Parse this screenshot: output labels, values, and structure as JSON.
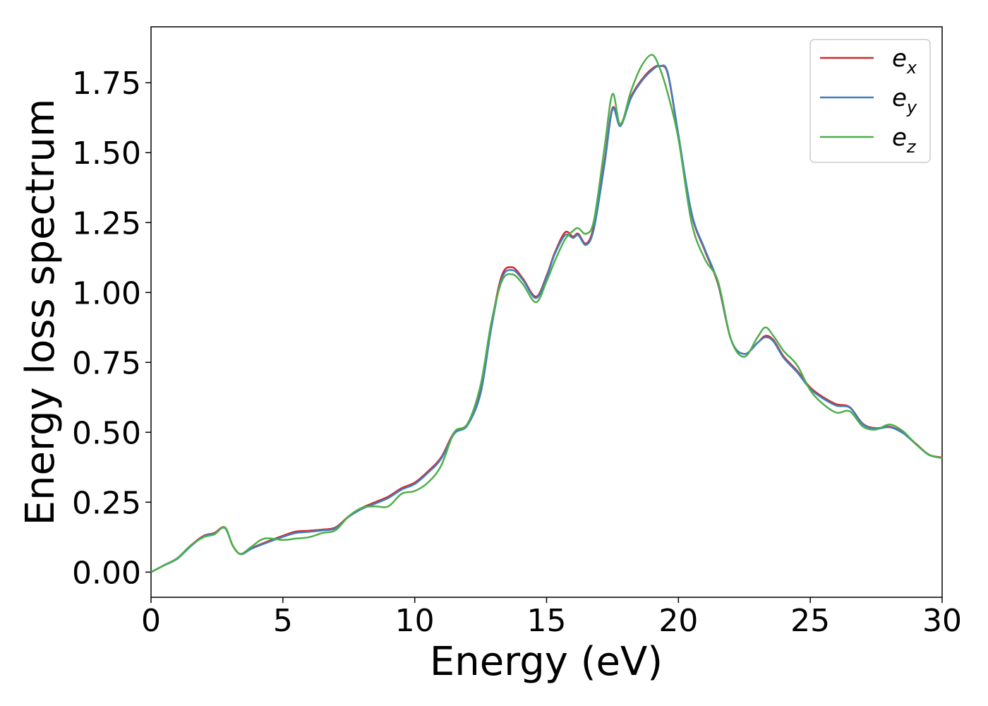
{
  "chart_data": {
    "type": "line",
    "title": "",
    "xlabel": "Energy (eV)",
    "ylabel": "Energy loss spectrum",
    "xlim": [
      0,
      30
    ],
    "ylim": [
      -0.09,
      1.95
    ],
    "xticks": [
      "0",
      "5",
      "10",
      "15",
      "20",
      "25",
      "30"
    ],
    "yticks": [
      "0.00",
      "0.25",
      "0.50",
      "0.75",
      "1.00",
      "1.25",
      "1.50",
      "1.75"
    ],
    "grid": false,
    "legend_position": "top-right",
    "series": [
      {
        "name": "e_x",
        "legend_main": "e",
        "legend_sub": "x",
        "color": "#d62728",
        "x": [
          0,
          0.5,
          1,
          1.5,
          2,
          2.4,
          2.8,
          3.1,
          3.4,
          3.8,
          4.3,
          5,
          5.5,
          6,
          6.5,
          7,
          7.5,
          8,
          8.5,
          9,
          9.5,
          10,
          10.5,
          11,
          11.5,
          12,
          12.5,
          12.9,
          13.3,
          13.7,
          14.1,
          14.6,
          15,
          15.3,
          15.7,
          16,
          16.2,
          16.5,
          16.8,
          17.2,
          17.5,
          17.8,
          18.2,
          18.6,
          19,
          19.3,
          19.6,
          20,
          20.5,
          21,
          21.5,
          22,
          22.5,
          23,
          23.3,
          23.6,
          24,
          24.5,
          25,
          25.5,
          26,
          26.5,
          27,
          27.5,
          28,
          28.5,
          29,
          29.5,
          30
        ],
        "values": [
          0,
          0.025,
          0.05,
          0.095,
          0.13,
          0.14,
          0.16,
          0.095,
          0.065,
          0.085,
          0.105,
          0.13,
          0.145,
          0.148,
          0.152,
          0.16,
          0.2,
          0.23,
          0.25,
          0.27,
          0.3,
          0.32,
          0.36,
          0.41,
          0.5,
          0.53,
          0.65,
          0.88,
          1.06,
          1.09,
          1.05,
          0.985,
          1.06,
          1.14,
          1.215,
          1.2,
          1.21,
          1.175,
          1.24,
          1.47,
          1.66,
          1.6,
          1.7,
          1.76,
          1.8,
          1.81,
          1.78,
          1.56,
          1.28,
          1.15,
          1.03,
          0.83,
          0.78,
          0.82,
          0.845,
          0.83,
          0.77,
          0.72,
          0.66,
          0.625,
          0.6,
          0.59,
          0.53,
          0.515,
          0.52,
          0.5,
          0.46,
          0.42,
          0.41
        ]
      },
      {
        "name": "e_y",
        "legend_main": "e",
        "legend_sub": "y",
        "color": "#3f7fbf",
        "x": [
          0,
          0.5,
          1,
          1.5,
          2,
          2.4,
          2.8,
          3.1,
          3.4,
          3.8,
          4.3,
          5,
          5.5,
          6,
          6.5,
          7,
          7.5,
          8,
          8.5,
          9,
          9.5,
          10,
          10.5,
          11,
          11.5,
          12,
          12.5,
          12.9,
          13.3,
          13.7,
          14.1,
          14.6,
          15,
          15.3,
          15.7,
          16,
          16.2,
          16.5,
          16.8,
          17.2,
          17.5,
          17.8,
          18.2,
          18.6,
          19,
          19.3,
          19.6,
          20,
          20.5,
          21,
          21.5,
          22,
          22.5,
          23,
          23.3,
          23.6,
          24,
          24.5,
          25,
          25.5,
          26,
          26.5,
          27,
          27.5,
          28,
          28.5,
          29,
          29.5,
          30
        ],
        "values": [
          0,
          0.024,
          0.048,
          0.092,
          0.128,
          0.138,
          0.158,
          0.094,
          0.064,
          0.083,
          0.102,
          0.126,
          0.14,
          0.144,
          0.149,
          0.157,
          0.198,
          0.226,
          0.245,
          0.265,
          0.295,
          0.315,
          0.355,
          0.405,
          0.495,
          0.525,
          0.64,
          0.87,
          1.05,
          1.08,
          1.045,
          0.98,
          1.055,
          1.135,
          1.205,
          1.195,
          1.205,
          1.17,
          1.23,
          1.46,
          1.655,
          1.595,
          1.695,
          1.755,
          1.795,
          1.81,
          1.785,
          1.565,
          1.285,
          1.155,
          1.035,
          0.83,
          0.78,
          0.82,
          0.84,
          0.825,
          0.765,
          0.715,
          0.655,
          0.62,
          0.595,
          0.588,
          0.528,
          0.513,
          0.518,
          0.498,
          0.458,
          0.419,
          0.408
        ]
      },
      {
        "name": "e_z",
        "legend_main": "e",
        "legend_sub": "z",
        "color": "#4daf4a",
        "x": [
          0,
          0.5,
          1,
          1.5,
          2,
          2.4,
          2.8,
          3.1,
          3.4,
          3.8,
          4.3,
          5,
          5.5,
          6,
          6.5,
          7,
          7.5,
          8,
          8.5,
          9,
          9.5,
          10,
          10.5,
          11,
          11.5,
          12,
          12.5,
          12.9,
          13.3,
          13.7,
          14.1,
          14.6,
          15,
          15.3,
          15.7,
          16,
          16.2,
          16.5,
          16.8,
          17.2,
          17.5,
          17.8,
          18.2,
          18.6,
          19,
          19.3,
          19.6,
          20,
          20.5,
          21,
          21.5,
          22,
          22.5,
          23,
          23.3,
          23.6,
          24,
          24.5,
          25,
          25.5,
          26,
          26.5,
          27,
          27.5,
          28,
          28.5,
          29,
          29.5,
          30
        ],
        "values": [
          0,
          0.025,
          0.05,
          0.095,
          0.125,
          0.135,
          0.16,
          0.095,
          0.065,
          0.09,
          0.12,
          0.115,
          0.12,
          0.125,
          0.14,
          0.15,
          0.2,
          0.23,
          0.235,
          0.235,
          0.28,
          0.29,
          0.32,
          0.38,
          0.5,
          0.53,
          0.67,
          0.89,
          1.04,
          1.065,
          1.03,
          0.965,
          1.04,
          1.11,
          1.19,
          1.22,
          1.23,
          1.21,
          1.26,
          1.52,
          1.71,
          1.6,
          1.72,
          1.81,
          1.85,
          1.8,
          1.71,
          1.55,
          1.25,
          1.12,
          1.04,
          0.83,
          0.77,
          0.84,
          0.875,
          0.845,
          0.79,
          0.74,
          0.65,
          0.6,
          0.57,
          0.575,
          0.52,
          0.51,
          0.528,
          0.505,
          0.458,
          0.42,
          0.408
        ]
      }
    ]
  }
}
